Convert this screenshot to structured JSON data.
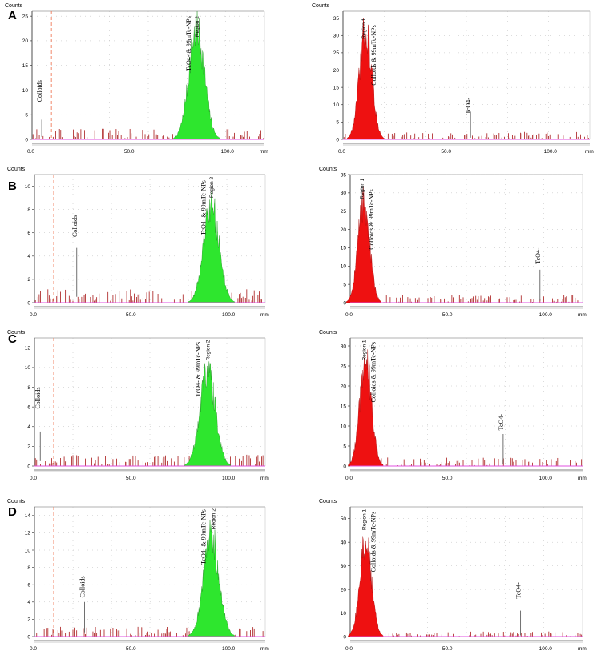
{
  "colors": {
    "green_fill": "#2ee62e",
    "red_fill": "#ee1111",
    "noise_bar": "#a81818",
    "baseline": "#e050e0",
    "dashed_marker": "#f07b5a",
    "grid_dot": "#b8b8b8"
  },
  "figure": {
    "x_unit": "mm",
    "y_title": "Counts",
    "x_ticks": [
      "0.0",
      "50.0",
      "100.0"
    ],
    "x_ticks_num": [
      0,
      50,
      100
    ],
    "x_max": 120
  },
  "chart_data": [
    {
      "row": "A",
      "side": "left",
      "type": "area",
      "fill": "green",
      "title": "",
      "xlabel": "mm",
      "ylabel": "Counts",
      "xlim": [
        0,
        120
      ],
      "ylim": [
        0,
        26
      ],
      "y_ticks": [
        0,
        5,
        10,
        15,
        20,
        25
      ],
      "dashed_line_x": 10,
      "peaks": [
        {
          "center": 85,
          "height": 24,
          "width": 4
        }
      ],
      "baseline_noise": 2,
      "labels": {
        "colloids": "Colloids",
        "pertechnetate": "TcO4- & 99mTc-NPs",
        "region": "Region 2"
      },
      "label_x": {
        "colloids": 5,
        "pertechnetate": 82,
        "region": 86
      },
      "label_y_top": {
        "colloids": 12,
        "pertechnetate": 25,
        "region": 25
      },
      "indicator": {
        "x": 5,
        "y": 4
      }
    },
    {
      "row": "A",
      "side": "right",
      "type": "area",
      "fill": "red",
      "title": "",
      "xlabel": "mm",
      "ylabel": "Counts",
      "xlim": [
        0,
        120
      ],
      "ylim": [
        0,
        37
      ],
      "y_ticks": [
        0,
        5,
        10,
        15,
        20,
        25,
        30,
        35
      ],
      "peaks": [
        {
          "center": 11,
          "height": 34,
          "width": 3
        }
      ],
      "baseline_noise": 2,
      "labels": {
        "colloids": "Colloids & 99mTc-NPs",
        "pertechnetate": "TcO4-",
        "region": "Region 1"
      },
      "label_x": {
        "colloids": 16,
        "pertechnetate": 62,
        "region": 11
      },
      "label_y_top": {
        "colloids": 33,
        "pertechnetate": 12,
        "region": 35
      },
      "indicator": {
        "x": 62,
        "y": 8
      }
    },
    {
      "row": "B",
      "side": "left",
      "type": "area",
      "fill": "green",
      "title": "",
      "xlabel": "mm",
      "ylabel": "Counts",
      "xlim": [
        0,
        120
      ],
      "ylim": [
        0,
        11
      ],
      "y_ticks": [
        0,
        2,
        4,
        6,
        8,
        10
      ],
      "dashed_line_x": 10,
      "peaks": [
        {
          "center": 92,
          "height": 9,
          "width": 4
        }
      ],
      "baseline_noise": 1,
      "labels": {
        "colloids": "Colloids",
        "pertechnetate": "TcO4- & 99mTc-NPs",
        "region": "Region 2"
      },
      "label_x": {
        "colloids": 22,
        "pertechnetate": 89,
        "region": 93
      },
      "label_y_top": {
        "colloids": 7.5,
        "pertechnetate": 10.5,
        "region": 10.8
      },
      "indicator": {
        "x": 22,
        "y": 4.7
      }
    },
    {
      "row": "B",
      "side": "right",
      "type": "area",
      "fill": "red",
      "title": "",
      "xlabel": "mm",
      "ylabel": "Counts",
      "xlim": [
        0,
        120
      ],
      "ylim": [
        0,
        35
      ],
      "y_ticks": [
        0,
        5,
        10,
        15,
        20,
        25,
        30,
        35
      ],
      "peaks": [
        {
          "center": 7,
          "height": 30,
          "width": 3
        }
      ],
      "baseline_noise": 2,
      "labels": {
        "colloids": "Colloids & 99mTc-NPs",
        "pertechnetate": "TcO4-",
        "region": "Region 1"
      },
      "label_x": {
        "colloids": 12,
        "pertechnetate": 98,
        "region": 7
      },
      "label_y_top": {
        "colloids": 31,
        "pertechnetate": 15,
        "region": 34
      },
      "indicator": {
        "x": 98,
        "y": 9
      }
    },
    {
      "row": "C",
      "side": "left",
      "type": "area",
      "fill": "green",
      "title": "",
      "xlabel": "mm",
      "ylabel": "Counts",
      "xlim": [
        0,
        120
      ],
      "ylim": [
        0,
        13
      ],
      "y_ticks": [
        0,
        2,
        4,
        6,
        8,
        10,
        12
      ],
      "dashed_line_x": 10,
      "peaks": [
        {
          "center": 90,
          "height": 10.5,
          "width": 4
        }
      ],
      "baseline_noise": 1,
      "labels": {
        "colloids": "Colloids",
        "pertechnetate": "TcO4- & 99mTc-NPs",
        "region": "Region 2"
      },
      "label_x": {
        "colloids": 3,
        "pertechnetate": 86,
        "region": 91
      },
      "label_y_top": {
        "colloids": 8,
        "pertechnetate": 12.6,
        "region": 12.8
      },
      "indicator": {
        "x": 3,
        "y": 3.5
      }
    },
    {
      "row": "C",
      "side": "right",
      "type": "area",
      "fill": "red",
      "title": "",
      "xlabel": "mm",
      "ylabel": "Counts",
      "xlim": [
        0,
        120
      ],
      "ylim": [
        0,
        32
      ],
      "y_ticks": [
        0,
        5,
        10,
        15,
        20,
        25,
        30
      ],
      "peaks": [
        {
          "center": 8,
          "height": 29,
          "width": 3
        }
      ],
      "baseline_noise": 2,
      "labels": {
        "colloids": "Colloids & 99mTc-NPs",
        "pertechnetate": "TcO4-",
        "region": "Region 1"
      },
      "label_x": {
        "colloids": 13,
        "pertechnetate": 79,
        "region": 8
      },
      "label_y_top": {
        "colloids": 31,
        "pertechnetate": 13,
        "region": 31.5
      },
      "indicator": {
        "x": 79,
        "y": 8
      }
    },
    {
      "row": "D",
      "side": "left",
      "type": "area",
      "fill": "green",
      "title": "",
      "xlabel": "mm",
      "ylabel": "Counts",
      "xlim": [
        0,
        120
      ],
      "ylim": [
        0,
        15
      ],
      "y_ticks": [
        0,
        2,
        4,
        6,
        8,
        10,
        12,
        14
      ],
      "dashed_line_x": 10,
      "peaks": [
        {
          "center": 92,
          "height": 12.5,
          "width": 4
        }
      ],
      "baseline_noise": 1,
      "labels": {
        "colloids": "Colloids",
        "pertechnetate": "TcO4- & 99mTc-NPs",
        "region": "Region 2"
      },
      "label_x": {
        "colloids": 26,
        "pertechnetate": 89,
        "region": 94
      },
      "label_y_top": {
        "colloids": 7,
        "pertechnetate": 14.7,
        "region": 14.8
      },
      "indicator": {
        "x": 26,
        "y": 4
      }
    },
    {
      "row": "D",
      "side": "right",
      "type": "area",
      "fill": "red",
      "title": "",
      "xlabel": "mm",
      "ylabel": "Counts",
      "xlim": [
        0,
        120
      ],
      "ylim": [
        0,
        55
      ],
      "y_ticks": [
        0,
        10,
        20,
        30,
        40,
        50
      ],
      "peaks": [
        {
          "center": 8,
          "height": 44,
          "width": 3
        }
      ],
      "baseline_noise": 2,
      "labels": {
        "colloids": "Colloids & 99mTc-NPs",
        "pertechnetate": "TcO4-",
        "region": "Region 1"
      },
      "label_x": {
        "colloids": 13,
        "pertechnetate": 88,
        "region": 8
      },
      "label_y_top": {
        "colloids": 53,
        "pertechnetate": 23,
        "region": 54
      },
      "indicator": {
        "x": 88,
        "y": 11
      }
    }
  ]
}
